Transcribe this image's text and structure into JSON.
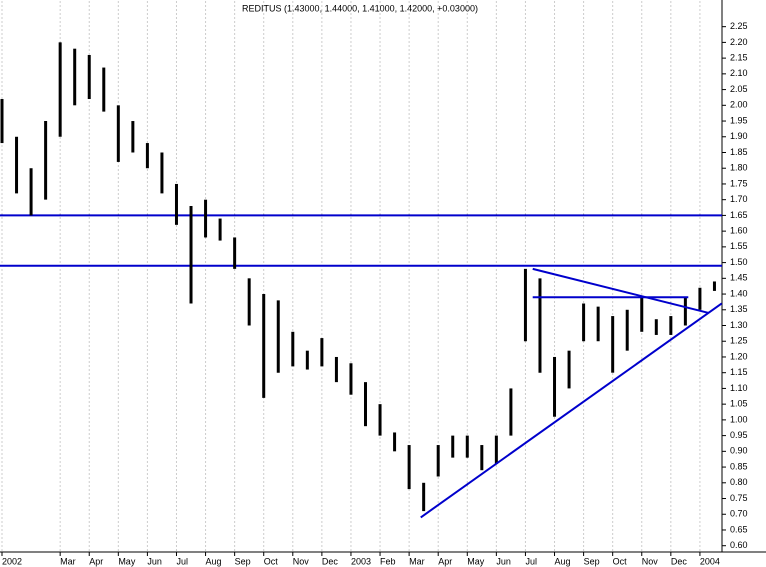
{
  "chart_data": {
    "type": "hilo",
    "title": "REDITUS (1.43000, 1.44000, 1.41000, 1.42000, +0.03000)",
    "categories": [
      "2002",
      null,
      null,
      null,
      "Mar",
      null,
      "Apr",
      null,
      "May",
      null,
      "Jun",
      null,
      "Jul",
      null,
      "Aug",
      null,
      "Sep",
      null,
      "Oct",
      null,
      "Nov",
      null,
      "Dec",
      null,
      "2003",
      null,
      "Feb",
      null,
      "Mar",
      null,
      "Apr",
      null,
      "May",
      null,
      "Jun",
      null,
      "Jul",
      null,
      "Aug",
      null,
      "Sep",
      null,
      "Oct",
      null,
      "Nov",
      null,
      "Dec",
      null,
      "2004",
      null
    ],
    "high": [
      2.02,
      1.9,
      1.8,
      1.95,
      2.2,
      2.18,
      2.16,
      2.12,
      2.0,
      1.95,
      1.88,
      1.85,
      1.75,
      1.68,
      1.7,
      1.64,
      1.58,
      1.45,
      1.4,
      1.38,
      1.28,
      1.22,
      1.26,
      1.2,
      1.18,
      1.12,
      1.05,
      0.96,
      0.92,
      0.8,
      0.92,
      0.95,
      0.95,
      0.92,
      0.95,
      1.1,
      1.48,
      1.45,
      1.2,
      1.22,
      1.37,
      1.36,
      1.33,
      1.35,
      1.39,
      1.32,
      1.33,
      1.39,
      1.42,
      1.44
    ],
    "low": [
      1.88,
      1.72,
      1.65,
      1.7,
      1.9,
      2.0,
      2.02,
      1.98,
      1.82,
      1.85,
      1.8,
      1.72,
      1.62,
      1.37,
      1.58,
      1.57,
      1.48,
      1.3,
      1.07,
      1.15,
      1.17,
      1.16,
      1.17,
      1.12,
      1.08,
      0.98,
      0.95,
      0.9,
      0.78,
      0.71,
      0.82,
      0.88,
      0.88,
      0.84,
      0.86,
      0.95,
      1.25,
      1.15,
      1.01,
      1.1,
      1.25,
      1.25,
      1.15,
      1.22,
      1.28,
      1.27,
      1.27,
      1.3,
      1.35,
      1.41
    ],
    "color": "#000000",
    "hlines": [
      1.65,
      1.49
    ],
    "line_color": "#0000cc",
    "trendlines": [
      {
        "x": [
          28.8,
          49.5
        ],
        "y": [
          0.69,
          1.37
        ]
      },
      {
        "x": [
          36.5,
          48.6
        ],
        "y": [
          1.48,
          1.34
        ]
      },
      {
        "x": [
          36.5,
          47.2
        ],
        "y": [
          1.39,
          1.39
        ]
      }
    ],
    "ylim": [
      0.58,
      2.33
    ],
    "yticks": [
      {
        "value": 0.6,
        "label": "0.60"
      },
      {
        "value": 0.65,
        "label": "0.65"
      },
      {
        "value": 0.7,
        "label": "0.70"
      },
      {
        "value": 0.75,
        "label": "0.75"
      },
      {
        "value": 0.8,
        "label": "0.80"
      },
      {
        "value": 0.85,
        "label": "0.85"
      },
      {
        "value": 0.9,
        "label": "0.90"
      },
      {
        "value": 0.95,
        "label": "0.95"
      },
      {
        "value": 1.0,
        "label": "1.00"
      },
      {
        "value": 1.05,
        "label": "1.05"
      },
      {
        "value": 1.1,
        "label": "1.10"
      },
      {
        "value": 1.15,
        "label": "1.15"
      },
      {
        "value": 1.2,
        "label": "1.20"
      },
      {
        "value": 1.25,
        "label": "1.25"
      },
      {
        "value": 1.3,
        "label": "1.30"
      },
      {
        "value": 1.35,
        "label": "1.35"
      },
      {
        "value": 1.4,
        "label": "1.40"
      },
      {
        "value": 1.45,
        "label": "1.45"
      },
      {
        "value": 1.5,
        "label": "1.50"
      },
      {
        "value": 1.55,
        "label": "1.55"
      },
      {
        "value": 1.6,
        "label": "1.60"
      },
      {
        "value": 1.65,
        "label": "1.65"
      },
      {
        "value": 1.7,
        "label": "1.70"
      },
      {
        "value": 1.75,
        "label": "1.75"
      },
      {
        "value": 1.8,
        "label": "1.80"
      },
      {
        "value": 1.85,
        "label": "1.85"
      },
      {
        "value": 1.9,
        "label": "1.90"
      },
      {
        "value": 1.95,
        "label": "1.95"
      },
      {
        "value": 2.0,
        "label": "2.00"
      },
      {
        "value": 2.05,
        "label": "2.05"
      },
      {
        "value": 2.1,
        "label": "2.10"
      },
      {
        "value": 2.15,
        "label": "2.15"
      },
      {
        "value": 2.2,
        "label": "2.20"
      },
      {
        "value": 2.25,
        "label": "2.25"
      }
    ],
    "grid": true
  }
}
